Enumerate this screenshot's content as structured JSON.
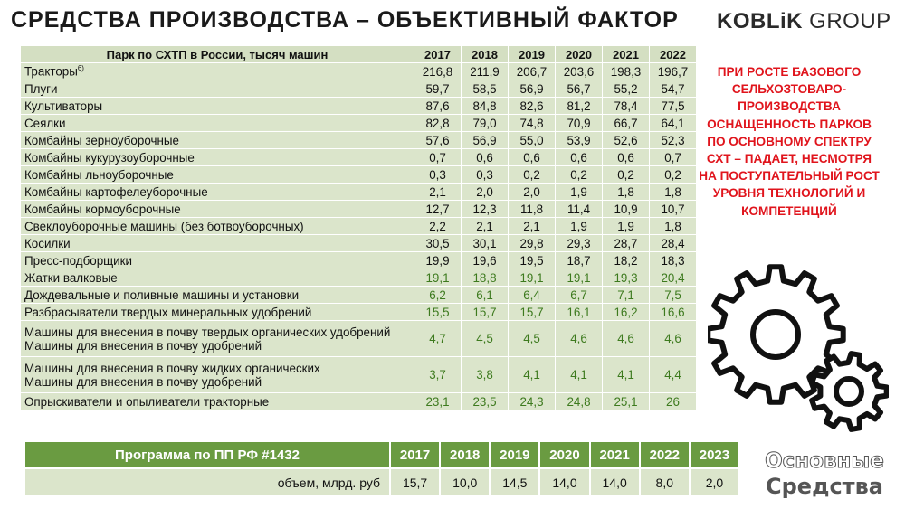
{
  "title": "СРЕДСТВА ПРОИЗВОДСТВА – ОБЪЕКТИВНЫЙ ФАКТОР",
  "logo": {
    "brand": "KOBLiK",
    "group": " GROUP"
  },
  "park_table": {
    "header_label": "Парк по СХТП в России, тысяч машин",
    "years": [
      "2017",
      "2018",
      "2019",
      "2020",
      "2021",
      "2022"
    ],
    "rows": [
      {
        "label": "Тракторы",
        "sup": "6)",
        "values": [
          "216,8",
          "211,9",
          "206,7",
          "203,6",
          "198,3",
          "196,7"
        ],
        "green": false
      },
      {
        "label": "Плуги",
        "values": [
          "59,7",
          "58,5",
          "56,9",
          "56,7",
          "55,2",
          "54,7"
        ],
        "green": false
      },
      {
        "label": "Культиваторы",
        "values": [
          "87,6",
          "84,8",
          "82,6",
          "81,2",
          "78,4",
          "77,5"
        ],
        "green": false
      },
      {
        "label": "Сеялки",
        "values": [
          "82,8",
          "79,0",
          "74,8",
          "70,9",
          "66,7",
          "64,1"
        ],
        "green": false
      },
      {
        "label": "Комбайны зерноуборочные",
        "values": [
          "57,6",
          "56,9",
          "55,0",
          "53,9",
          "52,6",
          "52,3"
        ],
        "green": false
      },
      {
        "label": "Комбайны кукурузоуборочные",
        "values": [
          "0,7",
          "0,6",
          "0,6",
          "0,6",
          "0,6",
          "0,7"
        ],
        "green": false
      },
      {
        "label": "Комбайны льноуборочные",
        "values": [
          "0,3",
          "0,3",
          "0,2",
          "0,2",
          "0,2",
          "0,2"
        ],
        "green": false
      },
      {
        "label": "Комбайны картофелеуборочные",
        "values": [
          "2,1",
          "2,0",
          "2,0",
          "1,9",
          "1,8",
          "1,8"
        ],
        "green": false
      },
      {
        "label": "Комбайны кормоуборочные",
        "values": [
          "12,7",
          "12,3",
          "11,8",
          "11,4",
          "10,9",
          "10,7"
        ],
        "green": false
      },
      {
        "label": "Свеклоуборочные машины (без ботвоуборочных)",
        "values": [
          "2,2",
          "2,1",
          "2,1",
          "1,9",
          "1,9",
          "1,8"
        ],
        "green": false
      },
      {
        "label": "Косилки",
        "values": [
          "30,5",
          "30,1",
          "29,8",
          "29,3",
          "28,7",
          "28,4"
        ],
        "green": false
      },
      {
        "label": "Пресс-подборщики",
        "values": [
          "19,9",
          "19,6",
          "19,5",
          "18,7",
          "18,2",
          "18,3"
        ],
        "green": false
      },
      {
        "label": "Жатки валковые",
        "values": [
          "19,1",
          "18,8",
          "19,1",
          "19,1",
          "19,3",
          "20,4"
        ],
        "green": true
      },
      {
        "label": "Дождевальные и поливные машины и установки",
        "values": [
          "6,2",
          "6,1",
          "6,4",
          "6,7",
          "7,1",
          "7,5"
        ],
        "green": true
      },
      {
        "label": "Разбрасыватели твердых минеральных удобрений",
        "values": [
          "15,5",
          "15,7",
          "15,7",
          "16,1",
          "16,2",
          "16,6"
        ],
        "green": true
      },
      {
        "label": "Машины для внесения в почву твердых органических удобрений",
        "label2": "Машины для внесения в почву удобрений",
        "values": [
          "4,7",
          "4,5",
          "4,5",
          "4,6",
          "4,6",
          "4,6"
        ],
        "green": true
      },
      {
        "label": "Машины для внесения в почву жидких органических",
        "label2": "Машины для внесения в почву удобрений",
        "values": [
          "3,7",
          "3,8",
          "4,1",
          "4,1",
          "4,1",
          "4,4"
        ],
        "green": true
      },
      {
        "label": "Опрыскиватели и опыливатели тракторные",
        "values": [
          "23,1",
          "23,5",
          "24,3",
          "24,8",
          "25,1",
          "26"
        ],
        "green": true
      }
    ]
  },
  "program_table": {
    "label": "Программа по ПП РФ #1432",
    "years": [
      "2017",
      "2018",
      "2019",
      "2020",
      "2021",
      "2022",
      "2023"
    ],
    "row_label": "объем, млрд. руб",
    "values": [
      "15,7",
      "10,0",
      "14,5",
      "14,0",
      "14,0",
      "8,0",
      "2,0"
    ]
  },
  "callout": "ПРИ РОСТЕ БАЗОВОГО СЕЛЬХОЗТОВАРО-ПРОИЗВОДСТВА ОСНАЩЕННОСТЬ ПАРКОВ ПО ОСНОВНОМУ СПЕКТРУ СХТ – ПАДАЕТ, НЕСМОТРЯ НА ПОСТУПАТЕЛЬНЫЙ РОСТ УРОВНЯ ТЕХНОЛОГИЙ И КОМПЕТЕНЦИЙ",
  "watermark": {
    "line1": "Основные",
    "line2": "Средства"
  },
  "colors": {
    "table_bg": "#dbe5cb",
    "header_green": "#6a9b41",
    "callout_red": "#e0141c",
    "green_values": "#3d7a1e"
  }
}
